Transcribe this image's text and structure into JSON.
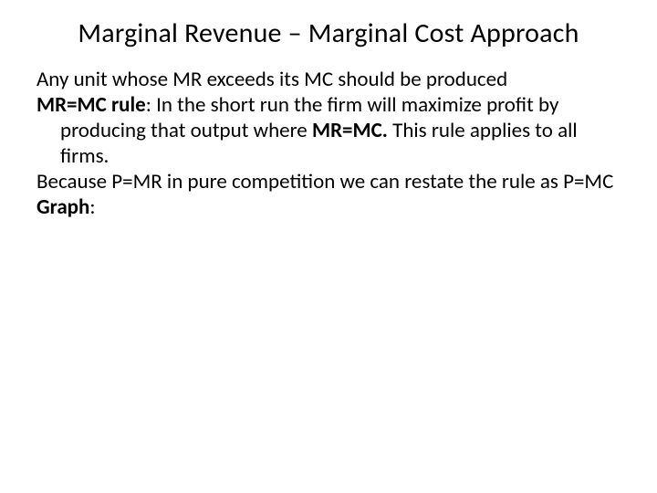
{
  "colors": {
    "background": "#ffffff",
    "text": "#000000"
  },
  "typography": {
    "font_family": "Calibri, 'Segoe UI', Arial, sans-serif",
    "title_fontsize": 30,
    "body_fontsize": 23,
    "line_height": 1.22
  },
  "title": "Marginal Revenue – Marginal Cost Approach",
  "body": {
    "line1": "Any unit whose MR exceeds its MC should be produced",
    "rule_label": "MR=MC rule",
    "rule_text_a": ":  In the short run the firm will maximize profit by producing that output where ",
    "rule_emph": "MR=MC.",
    "rule_text_b": "  This rule applies to all firms.",
    "line3": "Because P=MR in pure competition we can restate the rule as P=MC",
    "graph_label": "Graph",
    "graph_colon": ":"
  }
}
